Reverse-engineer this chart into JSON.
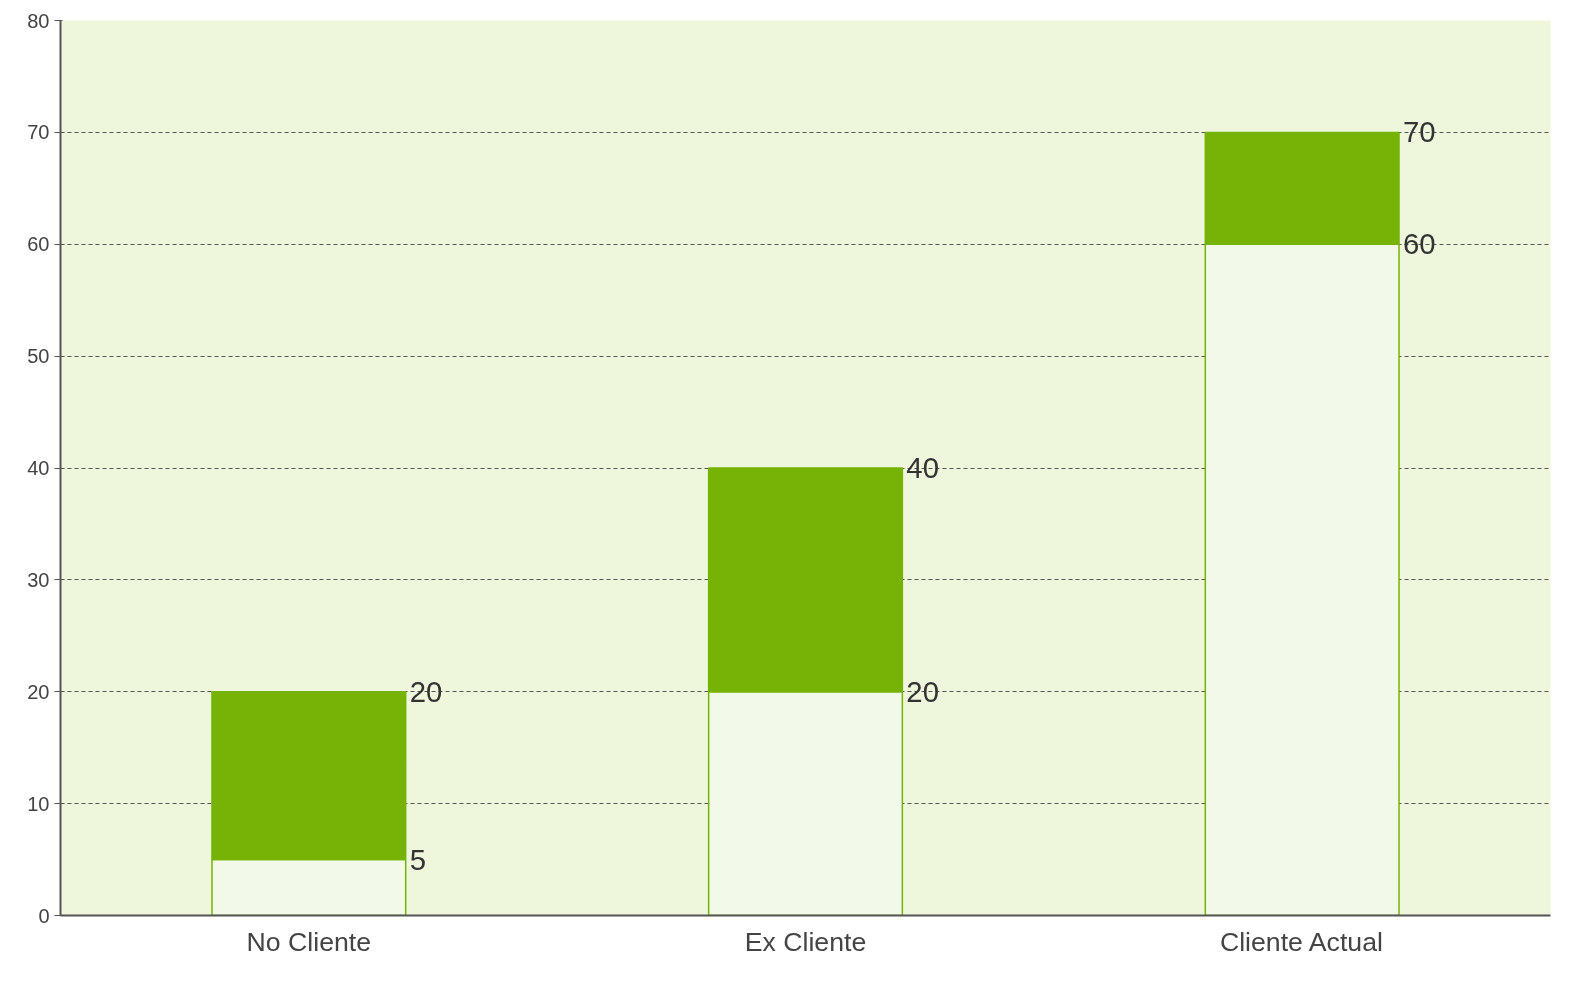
{
  "chart_data": {
    "type": "bar",
    "stacked": true,
    "categories": [
      "No Cliente",
      "Ex Cliente",
      "Cliente Actual"
    ],
    "series": [
      {
        "color": "#f3f9e8",
        "values": [
          5,
          20,
          60
        ],
        "value_labels": [
          "5",
          "20",
          "60"
        ]
      },
      {
        "color": "#76b306",
        "values": [
          15,
          20,
          10
        ]
      }
    ],
    "totals": [
      "20",
      "40",
      "70"
    ],
    "ylim": [
      0,
      80
    ],
    "yticks": [
      0,
      10,
      20,
      30,
      40,
      50,
      60,
      70,
      80
    ],
    "grid": "y",
    "line_style": "dashed"
  }
}
